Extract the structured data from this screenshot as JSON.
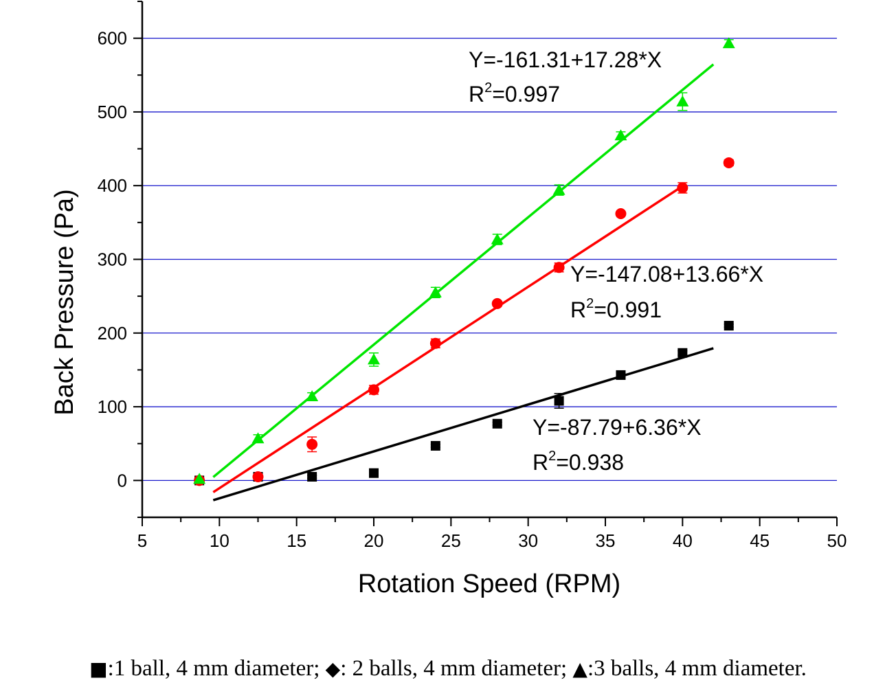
{
  "chart_data": {
    "type": "scatter",
    "xlabel": "Rotation Speed (RPM)",
    "ylabel": "Back Pressure (Pa)",
    "xlim": [
      5,
      50
    ],
    "ylim": [
      -50,
      650
    ],
    "xticks": [
      5,
      10,
      15,
      20,
      25,
      30,
      35,
      40,
      45,
      50
    ],
    "yticks": [
      0,
      100,
      200,
      300,
      400,
      500,
      600
    ],
    "gridlines": "horizontal",
    "grid_color": "#1a1acc",
    "series": [
      {
        "name": "1 ball, 4 mm diameter",
        "marker": "square",
        "color": "#000000",
        "x": [
          8.7,
          12.5,
          16,
          20,
          24,
          28,
          32,
          36,
          40,
          43
        ],
        "y": [
          0,
          5,
          5,
          10,
          47,
          77,
          108,
          143,
          173,
          210
        ],
        "err": [
          3,
          2,
          2,
          2,
          2,
          2,
          10,
          3,
          3,
          2
        ],
        "fit": {
          "intercept": -87.79,
          "slope": 6.36,
          "x_range": [
            9.6,
            42
          ]
        },
        "equation": "Y=-87.79+6.36*X",
        "r2_prefix": "R",
        "r2_value": "=0.938"
      },
      {
        "name": "2 balls, 4 mm diameter",
        "marker": "circle",
        "color": "#ff0000",
        "x": [
          8.7,
          12.5,
          16,
          20,
          24,
          28,
          32,
          36,
          40,
          43
        ],
        "y": [
          0,
          5,
          49,
          123,
          186,
          240,
          289,
          362,
          397,
          431
        ],
        "err": [
          3,
          3,
          10,
          6,
          6,
          3,
          6,
          3,
          7,
          4
        ],
        "fit": {
          "intercept": -147.08,
          "slope": 13.66,
          "x_range": [
            9.6,
            40
          ]
        },
        "equation": "Y=-147.08+13.66*X",
        "r2_prefix": "R",
        "r2_value": "=0.991"
      },
      {
        "name": "3 balls, 4 mm diameter",
        "marker": "triangle",
        "color": "#00e600",
        "x": [
          8.7,
          12.5,
          16,
          20,
          24,
          28,
          32,
          36,
          40,
          43
        ],
        "y": [
          2,
          57,
          114,
          164,
          255,
          327,
          394,
          468,
          514,
          593
        ],
        "err": [
          3,
          5,
          5,
          9,
          7,
          7,
          7,
          5,
          12,
          5
        ],
        "fit": {
          "intercept": -161.31,
          "slope": 17.28,
          "x_range": [
            9.6,
            42
          ]
        },
        "equation": "Y=-161.31+17.28*X",
        "r2_prefix": "R",
        "r2_value": "=0.997"
      }
    ],
    "annotations_superscript": "2"
  },
  "caption": {
    "square_symbol": "■",
    "square_text": ":1 ball, 4 mm diameter; ",
    "diamond_symbol": "◆",
    "diamond_text": ": 2 balls, 4 mm diameter; ",
    "triangle_symbol": "▲",
    "triangle_text": ":3 balls, 4 mm diameter."
  }
}
